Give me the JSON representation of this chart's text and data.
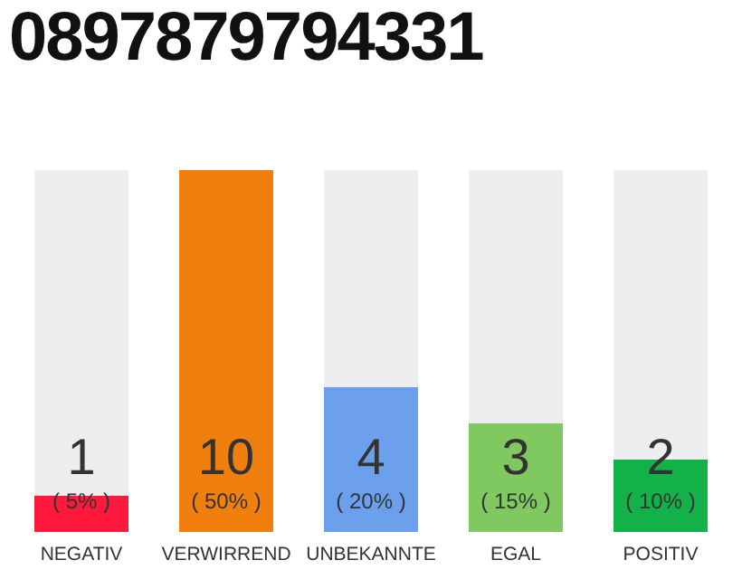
{
  "chart_data": {
    "type": "bar",
    "title": "0897879794331",
    "categories": [
      "NEGATIV",
      "VERWIRREND",
      "UNBEKANNTE",
      "EGAL",
      "POSITIV"
    ],
    "values": [
      1,
      10,
      4,
      3,
      2
    ],
    "colors": [
      "#ff1a3d",
      "#f07f0e",
      "#6ca0ec",
      "#80c860",
      "#12b248"
    ],
    "annotations": [
      "( 5% )",
      "( 50% )",
      "( 20% )",
      "( 15% )",
      "( 10% )"
    ],
    "data_labels": true,
    "tick_labels": "x"
  }
}
